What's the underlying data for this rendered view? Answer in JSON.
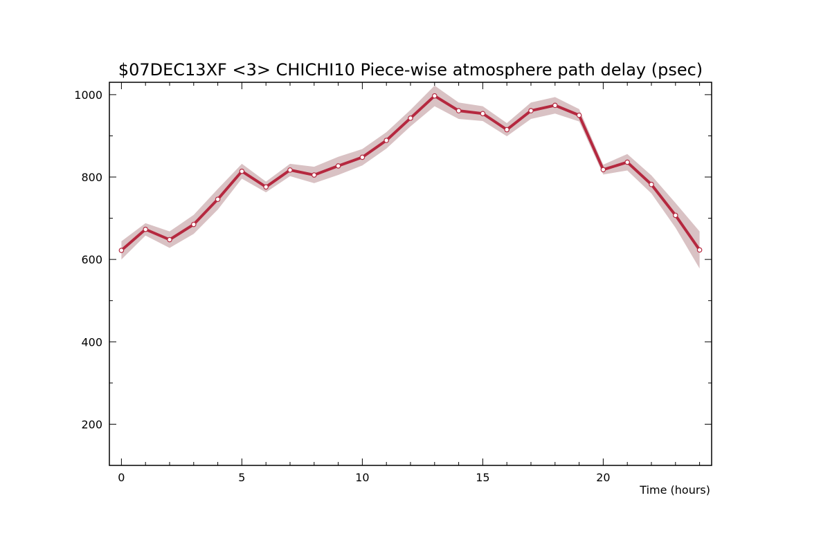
{
  "chart_data": {
    "type": "line",
    "title": "$07DEC13XF <3>  CHICHI10  Piece-wise atmosphere path delay (psec)",
    "xlabel": "Time (hours)",
    "ylabel": "",
    "xlim": [
      -0.5,
      24.5
    ],
    "ylim": [
      100,
      1030
    ],
    "x_ticks": [
      0,
      5,
      10,
      15,
      20
    ],
    "x_tick_labels": [
      "0",
      "5",
      "10",
      "15",
      "20"
    ],
    "y_ticks": [
      200,
      400,
      600,
      800,
      1000
    ],
    "y_tick_labels": [
      "200",
      "400",
      "600",
      "800",
      "1000"
    ],
    "grid": false,
    "colors": {
      "line": "#b5283f",
      "band": "#d9c2c4",
      "marker_fill": "#ffffff"
    },
    "series": [
      {
        "x": [
          0,
          1,
          2,
          3,
          4,
          5,
          6,
          7,
          8,
          9,
          10,
          11,
          12,
          13,
          14,
          15,
          16,
          17,
          18,
          19,
          20,
          21,
          22,
          23,
          24
        ],
        "values": [
          622,
          673,
          648,
          685,
          746,
          814,
          776,
          817,
          805,
          827,
          848,
          889,
          943,
          997,
          961,
          954,
          915,
          961,
          974,
          950,
          818,
          836,
          782,
          707,
          623
        ],
        "error": [
          22,
          15,
          20,
          23,
          25,
          18,
          13,
          15,
          20,
          22,
          20,
          20,
          20,
          25,
          20,
          18,
          16,
          20,
          20,
          15,
          12,
          20,
          22,
          30,
          45
        ]
      }
    ]
  }
}
